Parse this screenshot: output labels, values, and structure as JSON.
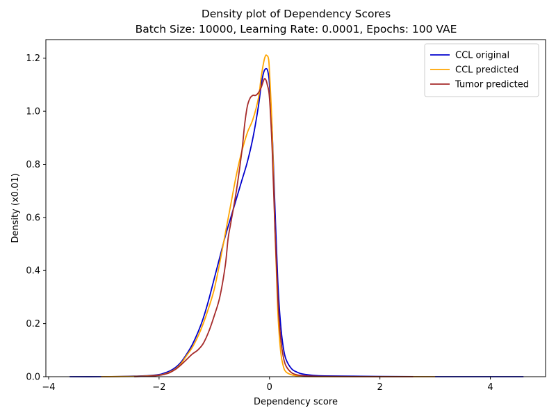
{
  "chart_data": {
    "type": "line",
    "title": "Density plot of Dependency Scores",
    "subtitle": "Batch Size: 10000, Learning Rate: 0.0001, Epochs: 100 VAE",
    "xlabel": "Dependency score",
    "ylabel": "Density (x0.01)",
    "xlim": [
      -4.05,
      5.0
    ],
    "ylim": [
      0.0,
      1.27
    ],
    "xticks": [
      -4,
      -2,
      0,
      2,
      4
    ],
    "xtick_labels": [
      "−4",
      "−2",
      "0",
      "2",
      "4"
    ],
    "yticks": [
      0.0,
      0.2,
      0.4,
      0.6,
      0.8,
      1.0,
      1.2
    ],
    "ytick_labels": [
      "0.0",
      "0.2",
      "0.4",
      "0.6",
      "0.8",
      "1.0",
      "1.2"
    ],
    "grid": false,
    "legend_position": "top-right",
    "series": [
      {
        "name": "CCL original",
        "color": "#0000cd",
        "x": [
          -3.62,
          -3.0,
          -2.5,
          -2.2,
          -2.0,
          -1.9,
          -1.8,
          -1.7,
          -1.6,
          -1.5,
          -1.4,
          -1.3,
          -1.2,
          -1.1,
          -1.0,
          -0.9,
          -0.8,
          -0.7,
          -0.6,
          -0.5,
          -0.4,
          -0.3,
          -0.2,
          -0.15,
          -0.1,
          -0.05,
          -0.02,
          0.0,
          0.05,
          0.1,
          0.15,
          0.2,
          0.25,
          0.3,
          0.4,
          0.5,
          0.6,
          0.8,
          1.0,
          1.5,
          2.0,
          3.0,
          4.0,
          4.6
        ],
        "y": [
          0.0,
          0.0,
          0.002,
          0.004,
          0.008,
          0.014,
          0.022,
          0.035,
          0.055,
          0.085,
          0.12,
          0.165,
          0.22,
          0.29,
          0.37,
          0.45,
          0.53,
          0.6,
          0.67,
          0.74,
          0.81,
          0.9,
          1.02,
          1.1,
          1.15,
          1.16,
          1.14,
          1.1,
          0.92,
          0.63,
          0.36,
          0.2,
          0.11,
          0.065,
          0.03,
          0.017,
          0.01,
          0.005,
          0.003,
          0.002,
          0.001,
          0.0,
          0.0,
          0.0
        ]
      },
      {
        "name": "CCL predicted",
        "color": "#ffa500",
        "x": [
          -3.05,
          -2.5,
          -2.2,
          -2.0,
          -1.9,
          -1.8,
          -1.7,
          -1.6,
          -1.5,
          -1.4,
          -1.3,
          -1.2,
          -1.1,
          -1.0,
          -0.9,
          -0.8,
          -0.7,
          -0.6,
          -0.5,
          -0.4,
          -0.3,
          -0.2,
          -0.15,
          -0.1,
          -0.07,
          -0.05,
          -0.02,
          0.0,
          0.05,
          0.1,
          0.15,
          0.2,
          0.25,
          0.3,
          0.4,
          0.5,
          0.6,
          1.0,
          2.0,
          3.0
        ],
        "y": [
          0.0,
          0.001,
          0.003,
          0.006,
          0.01,
          0.018,
          0.03,
          0.05,
          0.08,
          0.11,
          0.15,
          0.2,
          0.26,
          0.33,
          0.43,
          0.54,
          0.65,
          0.76,
          0.85,
          0.92,
          0.97,
          1.05,
          1.13,
          1.19,
          1.21,
          1.21,
          1.2,
          1.15,
          0.92,
          0.55,
          0.25,
          0.1,
          0.04,
          0.018,
          0.007,
          0.003,
          0.001,
          0.0,
          0.0,
          0.0
        ]
      },
      {
        "name": "Tumor predicted",
        "color": "#a52a2a",
        "x": [
          -2.45,
          -2.2,
          -2.0,
          -1.9,
          -1.8,
          -1.7,
          -1.6,
          -1.5,
          -1.4,
          -1.3,
          -1.2,
          -1.1,
          -1.0,
          -0.9,
          -0.8,
          -0.75,
          -0.7,
          -0.6,
          -0.5,
          -0.45,
          -0.4,
          -0.35,
          -0.3,
          -0.25,
          -0.2,
          -0.15,
          -0.1,
          -0.07,
          -0.04,
          0.0,
          0.05,
          0.1,
          0.15,
          0.2,
          0.25,
          0.3,
          0.4,
          0.5,
          0.6,
          0.8,
          1.0,
          2.0,
          2.6
        ],
        "y": [
          0.0,
          0.002,
          0.005,
          0.009,
          0.016,
          0.028,
          0.045,
          0.065,
          0.085,
          0.1,
          0.125,
          0.17,
          0.23,
          0.3,
          0.42,
          0.52,
          0.58,
          0.7,
          0.85,
          0.95,
          1.02,
          1.05,
          1.06,
          1.06,
          1.07,
          1.09,
          1.12,
          1.12,
          1.1,
          1.05,
          0.85,
          0.55,
          0.3,
          0.15,
          0.075,
          0.04,
          0.015,
          0.007,
          0.004,
          0.002,
          0.001,
          0.0,
          0.0
        ]
      }
    ]
  }
}
